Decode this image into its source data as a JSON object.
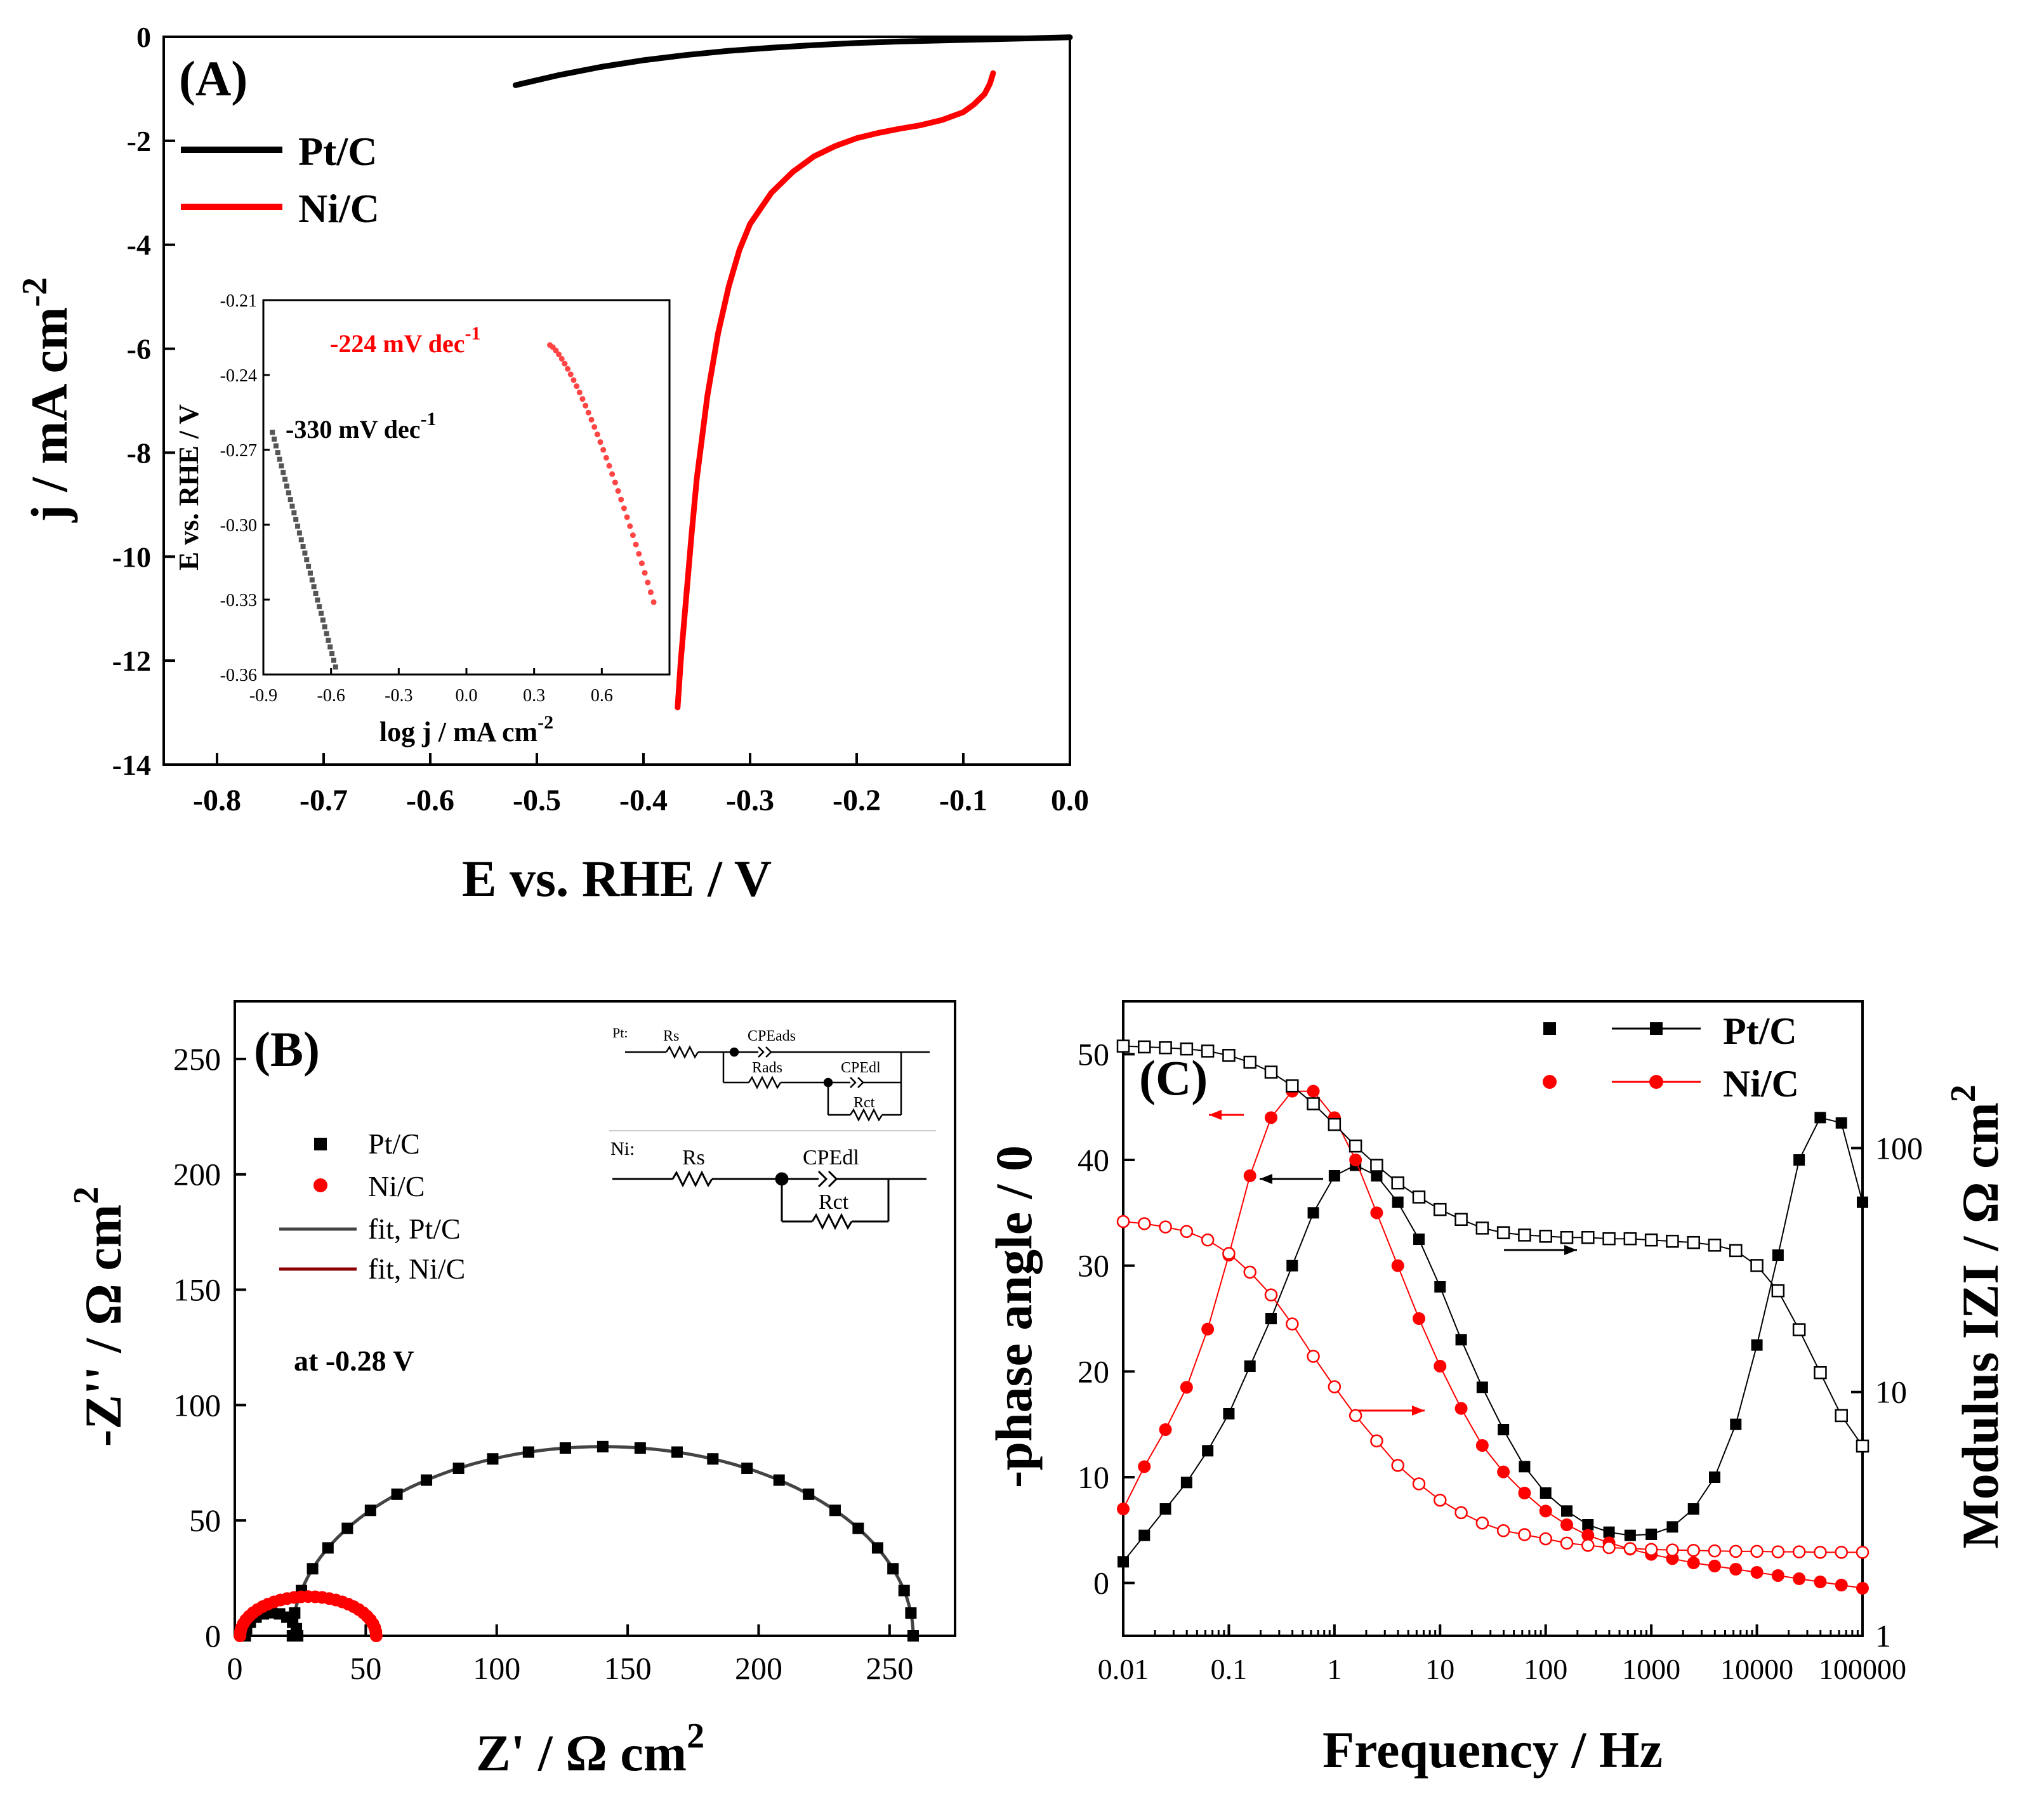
{
  "chart_data": [
    {
      "panel": "(A)",
      "type": "line",
      "xlabel": "E vs. RHE / V",
      "ylabel": "j / mA cm",
      "ylabel_sup": "-2",
      "xlim": [
        -0.85,
        0.0
      ],
      "ylim": [
        -14,
        0
      ],
      "xticks": [
        -0.8,
        -0.7,
        -0.6,
        -0.5,
        -0.4,
        -0.3,
        -0.2,
        -0.1,
        0.0
      ],
      "xtick_labels": [
        "-0.8",
        "-0.7",
        "-0.6",
        "-0.5",
        "-0.4",
        "-0.3",
        "-0.2",
        "-0.1",
        "0.0"
      ],
      "yticks": [
        0,
        -2,
        -4,
        -6,
        -8,
        -10,
        -12,
        -14
      ],
      "ytick_labels": [
        "0",
        "-2",
        "-4",
        "-6",
        "-8",
        "-10",
        "-12",
        "-14"
      ],
      "legend_position": "top-left",
      "series": [
        {
          "name": "Pt/C",
          "color": "#000000",
          "x": [
            -0.52,
            -0.48,
            -0.44,
            -0.4,
            -0.36,
            -0.32,
            -0.28,
            -0.24,
            -0.2,
            -0.16,
            -0.12,
            -0.08,
            -0.04,
            0.0
          ],
          "y": [
            -0.93,
            -0.74,
            -0.58,
            -0.45,
            -0.35,
            -0.27,
            -0.21,
            -0.16,
            -0.12,
            -0.09,
            -0.07,
            -0.05,
            -0.03,
            -0.01
          ]
        },
        {
          "name": "Ni/C",
          "color": "#ff0000",
          "x": [
            -0.368,
            -0.365,
            -0.36,
            -0.355,
            -0.35,
            -0.34,
            -0.33,
            -0.32,
            -0.31,
            -0.3,
            -0.28,
            -0.26,
            -0.24,
            -0.22,
            -0.2,
            -0.18,
            -0.16,
            -0.14,
            -0.12,
            -0.1,
            -0.09,
            -0.08,
            -0.075,
            -0.072
          ],
          "y": [
            -12.9,
            -12.0,
            -10.8,
            -9.6,
            -8.5,
            -6.9,
            -5.7,
            -4.8,
            -4.1,
            -3.6,
            -3.0,
            -2.6,
            -2.3,
            -2.1,
            -1.95,
            -1.85,
            -1.77,
            -1.7,
            -1.6,
            -1.45,
            -1.3,
            -1.1,
            -0.9,
            -0.7
          ]
        }
      ],
      "inset": {
        "type": "scatter",
        "xlabel": "log j / mA cm",
        "xlabel_sup": "-2",
        "ylabel": "E vs. RHE / V",
        "xlim": [
          -0.9,
          0.9
        ],
        "ylim": [
          -0.36,
          -0.21
        ],
        "xticks": [
          -0.9,
          -0.6,
          -0.3,
          0.0,
          0.3,
          0.6
        ],
        "xtick_labels": [
          "-0.9",
          "-0.6",
          "-0.3",
          "0.0",
          "0.3",
          "0.6"
        ],
        "yticks": [
          -0.21,
          -0.24,
          -0.27,
          -0.3,
          -0.33,
          -0.36
        ],
        "ytick_labels": [
          "-0.21",
          "-0.24",
          "-0.27",
          "-0.30",
          "-0.33",
          "-0.36"
        ],
        "annotations": [
          {
            "text": "-330 mV dec",
            "sup": "-1",
            "color": "#000000"
          },
          {
            "text": "-224 mV dec",
            "sup": "-1",
            "color": "#ff0000"
          }
        ],
        "series": [
          {
            "name": "Pt/C",
            "color": "#555555",
            "x_range": [
              -0.86,
              -0.58
            ],
            "y_range": [
              -0.263,
              -0.357
            ]
          },
          {
            "name": "Ni/C",
            "color": "#ff4444",
            "x_range": [
              0.37,
              0.83
            ],
            "y_range": [
              -0.228,
              -0.331
            ]
          }
        ]
      }
    },
    {
      "panel": "(B)",
      "type": "scatter",
      "xlabel": "Z' / Ω cm",
      "xlabel_sup": "2",
      "ylabel": "-Z'' / Ω  cm",
      "ylabel_sup": "2",
      "xlim": [
        0,
        275
      ],
      "ylim": [
        0,
        275
      ],
      "xticks": [
        0,
        50,
        100,
        150,
        200,
        250
      ],
      "xtick_labels": [
        "0",
        "50",
        "100",
        "150",
        "200",
        "250"
      ],
      "yticks": [
        0,
        50,
        100,
        150,
        200,
        250
      ],
      "ytick_labels": [
        "0",
        "50",
        "100",
        "150",
        "200",
        "250"
      ],
      "annotation": "at -0.28 V",
      "legend": [
        "Pt/C",
        "Ni/C",
        "fit, Pt/C",
        "fit, Ni/C"
      ],
      "series": [
        {
          "name": "Pt/C",
          "color": "#000000",
          "marker": "square",
          "arc1": {
            "x0": 4,
            "x1": 24,
            "peak": 10
          },
          "arc2": {
            "x0": 22,
            "x1": 259,
            "peak": 82
          }
        },
        {
          "name": "Ni/C",
          "color": "#ff0000",
          "marker": "circle",
          "arc1": {
            "x0": 2,
            "x1": 54,
            "peak": 17
          }
        },
        {
          "name": "fit, Pt/C",
          "color": "#444444",
          "marker": "line"
        },
        {
          "name": "fit, Ni/C",
          "color": "#8b0000",
          "marker": "line"
        }
      ],
      "circuits": {
        "pt": {
          "label": "Pt:",
          "rs": "Rs",
          "cpe_ads": "CPEads",
          "r_ads": "Rads",
          "cpe_dl": "CPEdl",
          "r_ct": "Rct"
        },
        "ni": {
          "label": "Ni:",
          "rs": "Rs",
          "cpe_dl": "CPEdl",
          "r_ct": "Rct"
        }
      }
    },
    {
      "panel": "(C)",
      "type": "scatter",
      "xscale": "log",
      "xlabel": "Frequency / Hz",
      "ylabel": "-phase angle / 0",
      "y2label": "Modulus IZI / Ω cm",
      "y2label_sup": "2",
      "xlim": [
        0.01,
        100000
      ],
      "ylim": [
        -5,
        55
      ],
      "y2lim": [
        1,
        400
      ],
      "y2scale": "log",
      "xticks": [
        0.01,
        0.1,
        1,
        10,
        100,
        1000,
        10000,
        100000
      ],
      "xtick_labels": [
        "0.01",
        "0.1",
        "1",
        "10",
        "100",
        "1000",
        "10000",
        "100000"
      ],
      "yticks": [
        0,
        10,
        20,
        30,
        40,
        50
      ],
      "ytick_labels": [
        "0",
        "10",
        "20",
        "30",
        "40",
        "50"
      ],
      "y2ticks": [
        1,
        10,
        100
      ],
      "y2tick_labels": [
        "1",
        "10",
        "100"
      ],
      "legend_position": "top-right",
      "legend": [
        "Pt/C",
        "Ni/C"
      ],
      "series": [
        {
          "name": "Pt/C phase",
          "color": "#000000",
          "marker": "filled-square",
          "axis": "y",
          "logf": [
            -2,
            -1.8,
            -1.6,
            -1.4,
            -1.2,
            -1,
            -0.8,
            -0.6,
            -0.4,
            -0.2,
            0,
            0.2,
            0.4,
            0.6,
            0.8,
            1,
            1.2,
            1.4,
            1.6,
            1.8,
            2,
            2.2,
            2.4,
            2.6,
            2.8,
            3,
            3.2,
            3.4,
            3.6,
            3.8,
            4,
            4.2,
            4.4,
            4.6,
            4.8,
            5
          ],
          "y": [
            2,
            4.5,
            7,
            9.5,
            12.5,
            16,
            20.5,
            25,
            30,
            35,
            38.5,
            39.5,
            38.5,
            36,
            32.5,
            28,
            23,
            18.5,
            14.5,
            11,
            8.5,
            6.8,
            5.5,
            4.8,
            4.5,
            4.6,
            5.3,
            7,
            10,
            15,
            22.5,
            31,
            40,
            44,
            43.5,
            36
          ]
        },
        {
          "name": "Ni/C phase",
          "color": "#ff0000",
          "marker": "filled-circle",
          "axis": "y",
          "logf": [
            -2,
            -1.8,
            -1.6,
            -1.4,
            -1.2,
            -1,
            -0.8,
            -0.6,
            -0.4,
            -0.2,
            0,
            0.2,
            0.4,
            0.6,
            0.8,
            1,
            1.2,
            1.4,
            1.6,
            1.8,
            2,
            2.2,
            2.4,
            2.6,
            2.8,
            3,
            3.2,
            3.4,
            3.6,
            3.8,
            4,
            4.2,
            4.4,
            4.6,
            4.8,
            5
          ],
          "y": [
            7,
            11,
            14.5,
            18.5,
            24,
            31,
            38.5,
            44,
            46.5,
            46.5,
            44,
            40,
            35,
            30,
            25,
            20.5,
            16.5,
            13,
            10.5,
            8.5,
            6.8,
            5.5,
            4.5,
            3.8,
            3.2,
            2.7,
            2.3,
            1.9,
            1.6,
            1.3,
            1,
            0.7,
            0.4,
            0.1,
            -0.2,
            -0.5
          ]
        },
        {
          "name": "Pt/C modulus",
          "color": "#000000",
          "marker": "open-square",
          "axis": "y2",
          "logf": [
            -2,
            -1.8,
            -1.6,
            -1.4,
            -1.2,
            -1,
            -0.8,
            -0.6,
            -0.4,
            -0.2,
            0,
            0.2,
            0.4,
            0.6,
            0.8,
            1,
            1.2,
            1.4,
            1.6,
            1.8,
            2,
            2.2,
            2.4,
            2.6,
            2.8,
            3,
            3.2,
            3.4,
            3.6,
            3.8,
            4,
            4.2,
            4.4,
            4.6,
            4.8,
            5
          ],
          "y": [
            262,
            260,
            258,
            255,
            250,
            240,
            225,
            205,
            180,
            152,
            125,
            102,
            85,
            72,
            63,
            56,
            51,
            47,
            45,
            44,
            43.5,
            43,
            43,
            42.5,
            42.5,
            42,
            41.5,
            41,
            40,
            38,
            33,
            26,
            18,
            12,
            8,
            6
          ]
        },
        {
          "name": "Ni/C modulus",
          "color": "#ff0000",
          "marker": "open-circle",
          "axis": "y2",
          "logf": [
            -2,
            -1.8,
            -1.6,
            -1.4,
            -1.2,
            -1,
            -0.8,
            -0.6,
            -0.4,
            -0.2,
            0,
            0.2,
            0.4,
            0.6,
            0.8,
            1,
            1.2,
            1.4,
            1.6,
            1.8,
            2,
            2.2,
            2.4,
            2.6,
            2.8,
            3,
            3.2,
            3.4,
            3.6,
            3.8,
            4,
            4.2,
            4.4,
            4.6,
            4.8,
            5
          ],
          "y": [
            50,
            49,
            47.5,
            45.5,
            42,
            37,
            31,
            25,
            19,
            14,
            10.5,
            8,
            6.3,
            5,
            4.2,
            3.6,
            3.2,
            2.9,
            2.7,
            2.6,
            2.5,
            2.4,
            2.35,
            2.3,
            2.28,
            2.26,
            2.25,
            2.24,
            2.23,
            2.22,
            2.22,
            2.21,
            2.21,
            2.2,
            2.2,
            2.2
          ]
        }
      ]
    }
  ]
}
